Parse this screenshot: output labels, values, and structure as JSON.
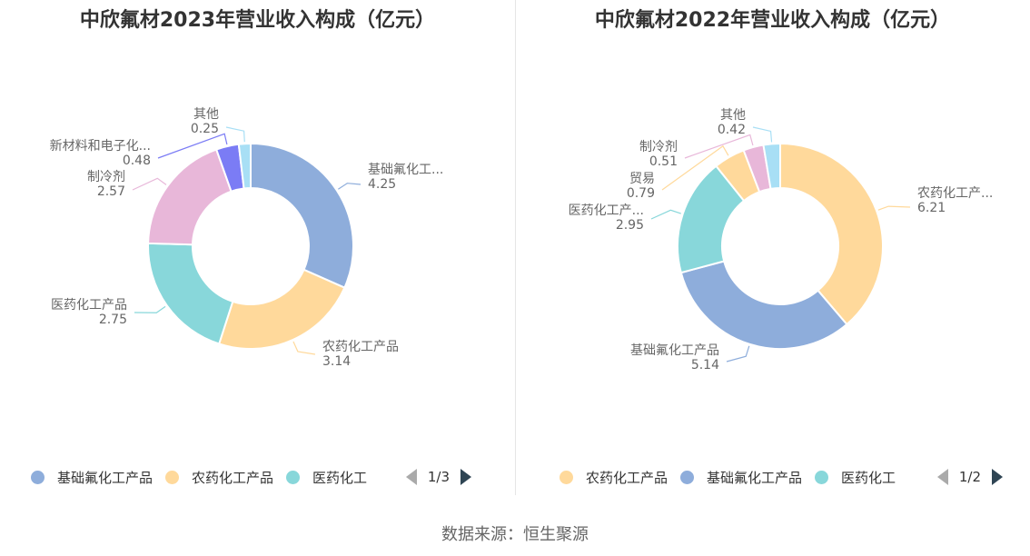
{
  "source": "数据来源：恒生聚源",
  "colors": {
    "blue": "#8eaddb",
    "yellow": "#ffd99b",
    "teal": "#88d7da",
    "pink": "#e8b7d9",
    "purple": "#7b7cf5",
    "lightblue": "#a8dff5"
  },
  "charts": [
    {
      "title": "中欣氟材2023年营业收入构成（亿元）",
      "legend": [
        {
          "label": "基础氟化工产品",
          "color": "#8eaddb"
        },
        {
          "label": "农药化工产品",
          "color": "#ffd99b"
        },
        {
          "label": "医药化工",
          "color": "#88d7da"
        }
      ],
      "pager": "1/3"
    },
    {
      "title": "中欣氟材2022年营业收入构成（亿元）",
      "legend": [
        {
          "label": "农药化工产品",
          "color": "#ffd99b"
        },
        {
          "label": "基础氟化工产品",
          "color": "#8eaddb"
        },
        {
          "label": "医药化工",
          "color": "#88d7da"
        }
      ],
      "pager": "1/2"
    }
  ],
  "chart_data": [
    {
      "type": "pie",
      "title": "中欣氟材2023年营业收入构成（亿元）",
      "unit": "亿元",
      "series": [
        {
          "name": "基础氟化工...",
          "value": 4.25,
          "color": "#8eaddb"
        },
        {
          "name": "农药化工产品",
          "value": 3.14,
          "color": "#ffd99b"
        },
        {
          "name": "医药化工产品",
          "value": 2.75,
          "color": "#88d7da"
        },
        {
          "name": "制冷剂",
          "value": 2.57,
          "color": "#e8b7d9"
        },
        {
          "name": "新材料和电子化...",
          "value": 0.48,
          "color": "#7b7cf5"
        },
        {
          "name": "其他",
          "value": 0.25,
          "color": "#a8dff5"
        }
      ]
    },
    {
      "type": "pie",
      "title": "中欣氟材2022年营业收入构成（亿元）",
      "unit": "亿元",
      "series": [
        {
          "name": "农药化工产...",
          "value": 6.21,
          "color": "#ffd99b"
        },
        {
          "name": "基础氟化工产品",
          "value": 5.14,
          "color": "#8eaddb"
        },
        {
          "name": "医药化工产...",
          "value": 2.95,
          "color": "#88d7da"
        },
        {
          "name": "贸易",
          "value": 0.79,
          "color": "#ffd99b"
        },
        {
          "name": "制冷剂",
          "value": 0.51,
          "color": "#e8b7d9"
        },
        {
          "name": "其他",
          "value": 0.42,
          "color": "#a8dff5"
        }
      ]
    }
  ]
}
